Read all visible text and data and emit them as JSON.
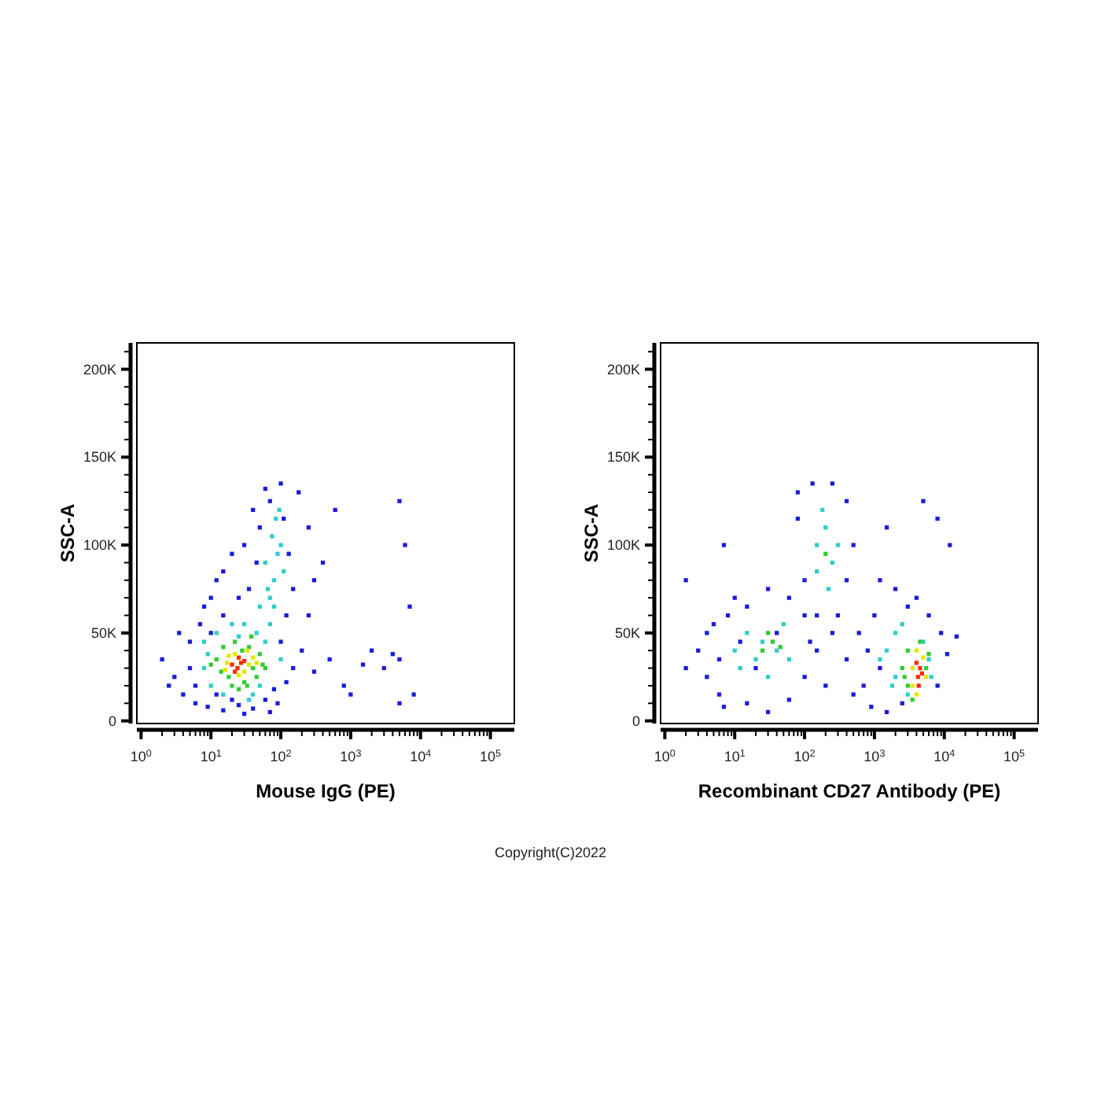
{
  "chart_data": [
    {
      "type": "scatter",
      "xlabel": "Mouse IgG (PE)",
      "ylabel": "SSC-A",
      "log": "x",
      "marker": "square",
      "xlim": [
        0.87,
        220000
      ],
      "ylim": [
        -1500,
        215000
      ],
      "xticks": [
        {
          "value": 1,
          "label": "10$^{0}$"
        },
        {
          "value": 2,
          "label": null
        },
        {
          "value": 3,
          "label": null
        },
        {
          "value": 4,
          "label": null
        },
        {
          "value": 5,
          "label": null
        },
        {
          "value": 6,
          "label": null
        },
        {
          "value": 7,
          "label": null
        },
        {
          "value": 8,
          "label": null
        },
        {
          "value": 9,
          "label": null
        },
        {
          "value": 10,
          "label": "10$^{1}$"
        },
        {
          "value": 20,
          "label": null
        },
        {
          "value": 30,
          "label": null
        },
        {
          "value": 40,
          "label": null
        },
        {
          "value": 50,
          "label": null
        },
        {
          "value": 60,
          "label": null
        },
        {
          "value": 70,
          "label": null
        },
        {
          "value": 80,
          "label": null
        },
        {
          "value": 90,
          "label": null
        },
        {
          "value": 100,
          "label": "10$^{2}$"
        },
        {
          "value": 200,
          "label": null
        },
        {
          "value": 300,
          "label": null
        },
        {
          "value": 400,
          "label": null
        },
        {
          "value": 500,
          "label": null
        },
        {
          "value": 600,
          "label": null
        },
        {
          "value": 700,
          "label": null
        },
        {
          "value": 800,
          "label": null
        },
        {
          "value": 900,
          "label": null
        },
        {
          "value": 1000,
          "label": "10$^{3}$"
        },
        {
          "value": 2000,
          "label": null
        },
        {
          "value": 3000,
          "label": null
        },
        {
          "value": 4000,
          "label": null
        },
        {
          "value": 5000,
          "label": null
        },
        {
          "value": 6000,
          "label": null
        },
        {
          "value": 7000,
          "label": null
        },
        {
          "value": 8000,
          "label": null
        },
        {
          "value": 9000,
          "label": null
        },
        {
          "value": 10000,
          "label": "10$^{4}$"
        },
        {
          "value": 20000,
          "label": null
        },
        {
          "value": 30000,
          "label": null
        },
        {
          "value": 40000,
          "label": null
        },
        {
          "value": 50000,
          "label": null
        },
        {
          "value": 60000,
          "label": null
        },
        {
          "value": 70000,
          "label": null
        },
        {
          "value": 80000,
          "label": null
        },
        {
          "value": 90000,
          "label": null
        },
        {
          "value": 100000,
          "label": "10$^{5}$"
        }
      ],
      "yticks": [
        0,
        {
          "value": 10000,
          "label": null
        },
        {
          "value": 20000,
          "label": null
        },
        {
          "value": 30000,
          "label": null
        },
        {
          "value": 40000,
          "label": null
        },
        {
          "value": 50000,
          "label": "50K"
        },
        {
          "value": 60000,
          "label": null
        },
        {
          "value": 70000,
          "label": null
        },
        {
          "value": 80000,
          "label": null
        },
        {
          "value": 90000,
          "label": null
        },
        {
          "value": 100000,
          "label": "100K"
        },
        {
          "value": 110000,
          "label": null
        },
        {
          "value": 120000,
          "label": null
        },
        {
          "value": 130000,
          "label": null
        },
        {
          "value": 140000,
          "label": null
        },
        {
          "value": 150000,
          "label": "150K"
        },
        {
          "value": 160000,
          "label": null
        },
        {
          "value": 170000,
          "label": null
        },
        {
          "value": 180000,
          "label": null
        },
        {
          "value": 190000,
          "label": null
        },
        {
          "value": 200000,
          "label": "200K"
        },
        {
          "value": 210000,
          "label": null
        }
      ],
      "series": [
        {
          "color": "#1c1cdc",
          "x": [
            3,
            4,
            5,
            6,
            5,
            7,
            8,
            10,
            12,
            9,
            15,
            25,
            40,
            60,
            80,
            120,
            150,
            200,
            300,
            500,
            800,
            1500,
            3000,
            5000,
            8000,
            5000,
            5000,
            6000,
            7000,
            600,
            400,
            250,
            180,
            100,
            60,
            40,
            30,
            20,
            15,
            2,
            2.5,
            3.5,
            6,
            10,
            15,
            25,
            35,
            45,
            50,
            70,
            110,
            130,
            150,
            120,
            100,
            90,
            70,
            30,
            20,
            12,
            1000,
            2000,
            4000,
            250,
            300
          ],
          "values": [
            25000,
            15000,
            45000,
            10000,
            30000,
            55000,
            65000,
            70000,
            80000,
            8000,
            6000,
            9000,
            7000,
            12000,
            18000,
            22000,
            30000,
            40000,
            28000,
            35000,
            20000,
            32000,
            30000,
            35000,
            15000,
            10000,
            125000,
            100000,
            65000,
            120000,
            90000,
            110000,
            130000,
            135000,
            132000,
            120000,
            100000,
            95000,
            85000,
            35000,
            20000,
            50000,
            20000,
            50000,
            60000,
            70000,
            75000,
            90000,
            110000,
            125000,
            115000,
            95000,
            75000,
            60000,
            45000,
            10000,
            5000,
            4000,
            12000,
            15000,
            15000,
            40000,
            38000,
            60000,
            80000
          ]
        },
        {
          "color": "#33cccc",
          "x": [
            8,
            8,
            10,
            12,
            15,
            20,
            30,
            40,
            50,
            60,
            70,
            70,
            80,
            90,
            75,
            85,
            100,
            60,
            65,
            50,
            9,
            35,
            110,
            95,
            80,
            100,
            25,
            45
          ],
          "values": [
            30000,
            45000,
            20000,
            50000,
            15000,
            55000,
            55000,
            15000,
            20000,
            45000,
            55000,
            70000,
            80000,
            95000,
            105000,
            115000,
            100000,
            90000,
            75000,
            65000,
            38000,
            12000,
            85000,
            120000,
            65000,
            35000,
            48000,
            50000
          ]
        },
        {
          "color": "#33cc33",
          "x": [
            12,
            15,
            18,
            22,
            28,
            35,
            40,
            45,
            50,
            14,
            20,
            30,
            55,
            10,
            25,
            38,
            60,
            33
          ],
          "values": [
            35000,
            42000,
            25000,
            45000,
            40000,
            42000,
            30000,
            25000,
            38000,
            28000,
            20000,
            22000,
            32000,
            32000,
            18000,
            48000,
            30000,
            20000
          ]
        },
        {
          "color": "#e6e600",
          "x": [
            17,
            22,
            33,
            35,
            30,
            16,
            25,
            40,
            18,
            45
          ],
          "values": [
            33000,
            38000,
            40000,
            32000,
            28000,
            29000,
            26000,
            36000,
            37000,
            33000
          ]
        },
        {
          "color": "#ff2a00",
          "x": [
            20,
            24,
            27,
            22,
            30,
            25
          ],
          "values": [
            32000,
            30000,
            33000,
            28000,
            34000,
            36000
          ]
        }
      ]
    },
    {
      "type": "scatter",
      "xlabel": "Recombinant CD27 Antibody (PE)",
      "ylabel": "SSC-A",
      "log": "x",
      "marker": "square",
      "xlim": [
        0.87,
        220000
      ],
      "ylim": [
        -1500,
        215000
      ],
      "xticks": [
        {
          "value": 1,
          "label": "10$^{0}$"
        },
        {
          "value": 2,
          "label": null
        },
        {
          "value": 3,
          "label": null
        },
        {
          "value": 4,
          "label": null
        },
        {
          "value": 5,
          "label": null
        },
        {
          "value": 6,
          "label": null
        },
        {
          "value": 7,
          "label": null
        },
        {
          "value": 8,
          "label": null
        },
        {
          "value": 9,
          "label": null
        },
        {
          "value": 10,
          "label": "10$^{1}$"
        },
        {
          "value": 20,
          "label": null
        },
        {
          "value": 30,
          "label": null
        },
        {
          "value": 40,
          "label": null
        },
        {
          "value": 50,
          "label": null
        },
        {
          "value": 60,
          "label": null
        },
        {
          "value": 70,
          "label": null
        },
        {
          "value": 80,
          "label": null
        },
        {
          "value": 90,
          "label": null
        },
        {
          "value": 100,
          "label": "10$^{2}$"
        },
        {
          "value": 200,
          "label": null
        },
        {
          "value": 300,
          "label": null
        },
        {
          "value": 400,
          "label": null
        },
        {
          "value": 500,
          "label": null
        },
        {
          "value": 600,
          "label": null
        },
        {
          "value": 700,
          "label": null
        },
        {
          "value": 800,
          "label": null
        },
        {
          "value": 900,
          "label": null
        },
        {
          "value": 1000,
          "label": "10$^{3}$"
        },
        {
          "value": 2000,
          "label": null
        },
        {
          "value": 3000,
          "label": null
        },
        {
          "value": 4000,
          "label": null
        },
        {
          "value": 5000,
          "label": null
        },
        {
          "value": 6000,
          "label": null
        },
        {
          "value": 7000,
          "label": null
        },
        {
          "value": 8000,
          "label": null
        },
        {
          "value": 9000,
          "label": null
        },
        {
          "value": 10000,
          "label": "10$^{4}$"
        },
        {
          "value": 20000,
          "label": null
        },
        {
          "value": 30000,
          "label": null
        },
        {
          "value": 40000,
          "label": null
        },
        {
          "value": 50000,
          "label": null
        },
        {
          "value": 60000,
          "label": null
        },
        {
          "value": 70000,
          "label": null
        },
        {
          "value": 80000,
          "label": null
        },
        {
          "value": 90000,
          "label": null
        },
        {
          "value": 100000,
          "label": "10$^{5}$"
        }
      ],
      "yticks": [
        0,
        {
          "value": 10000,
          "label": null
        },
        {
          "value": 20000,
          "label": null
        },
        {
          "value": 30000,
          "label": null
        },
        {
          "value": 40000,
          "label": null
        },
        {
          "value": 50000,
          "label": "50K"
        },
        {
          "value": 60000,
          "label": null
        },
        {
          "value": 70000,
          "label": null
        },
        {
          "value": 80000,
          "label": null
        },
        {
          "value": 90000,
          "label": null
        },
        {
          "value": 100000,
          "label": "100K"
        },
        {
          "value": 110000,
          "label": null
        },
        {
          "value": 120000,
          "label": null
        },
        {
          "value": 130000,
          "label": null
        },
        {
          "value": 140000,
          "label": null
        },
        {
          "value": 150000,
          "label": "150K"
        },
        {
          "value": 160000,
          "label": null
        },
        {
          "value": 170000,
          "label": null
        },
        {
          "value": 180000,
          "label": null
        },
        {
          "value": 190000,
          "label": null
        },
        {
          "value": 200000,
          "label": "200K"
        },
        {
          "value": 210000,
          "label": null
        }
      ],
      "annotations": [
        "Copyright(C)2022"
      ],
      "series": [
        {
          "color": "#1c1cdc",
          "x": [
            3,
            4,
            5,
            6,
            8,
            10,
            6,
            4,
            7,
            15,
            30,
            60,
            100,
            120,
            100,
            60,
            30,
            15,
            2,
            7,
            150,
            100,
            80,
            80,
            130,
            250,
            400,
            500,
            400,
            300,
            250,
            150,
            400,
            600,
            700,
            900,
            1500,
            2500,
            1000,
            2000,
            4000,
            6000,
            9000,
            15000,
            11000,
            8000,
            3000,
            5000,
            12000,
            8000,
            1500,
            1200,
            200,
            500,
            2,
            40,
            20,
            800,
            12,
            1200
          ],
          "values": [
            40000,
            25000,
            55000,
            15000,
            60000,
            70000,
            35000,
            50000,
            8000,
            10000,
            5000,
            12000,
            25000,
            45000,
            60000,
            70000,
            75000,
            65000,
            80000,
            100000,
            60000,
            80000,
            115000,
            130000,
            135000,
            135000,
            125000,
            100000,
            80000,
            60000,
            50000,
            40000,
            35000,
            50000,
            20000,
            8000,
            5000,
            10000,
            60000,
            75000,
            70000,
            60000,
            50000,
            48000,
            38000,
            20000,
            65000,
            125000,
            100000,
            115000,
            110000,
            80000,
            20000,
            15000,
            30000,
            50000,
            30000,
            40000,
            45000,
            30000
          ]
        },
        {
          "color": "#33cccc",
          "x": [
            10,
            15,
            20,
            25,
            40,
            50,
            30,
            12,
            60,
            150,
            200,
            250,
            180,
            300,
            220,
            150,
            1500,
            2000,
            2000,
            2500,
            5000,
            6000,
            1200,
            3000,
            1800,
            6500
          ],
          "values": [
            40000,
            50000,
            35000,
            45000,
            40000,
            55000,
            25000,
            30000,
            35000,
            100000,
            110000,
            90000,
            120000,
            100000,
            75000,
            85000,
            40000,
            50000,
            25000,
            55000,
            45000,
            35000,
            35000,
            15000,
            20000,
            25000
          ]
        },
        {
          "color": "#33cc33",
          "x": [
            25,
            35,
            45,
            30,
            200,
            2500,
            3000,
            3000,
            5500,
            4500,
            3500,
            6000,
            2700
          ],
          "values": [
            40000,
            45000,
            42000,
            50000,
            95000,
            30000,
            40000,
            20000,
            30000,
            45000,
            12000,
            38000,
            25000
          ]
        },
        {
          "color": "#e6e600",
          "x": [
            3500,
            4000,
            5000,
            3500,
            5500,
            4000
          ],
          "values": [
            20000,
            40000,
            36000,
            30000,
            25000,
            15000
          ]
        },
        {
          "color": "#ff2a00",
          "x": [
            4200,
            4500,
            4000,
            4800,
            4300
          ],
          "values": [
            25000,
            30000,
            33000,
            27000,
            20000
          ]
        }
      ]
    }
  ]
}
